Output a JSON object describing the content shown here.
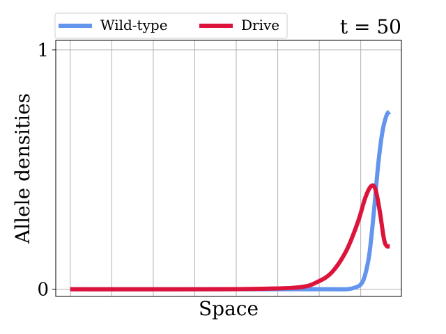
{
  "chart_data": {
    "type": "line",
    "title": "t = 50",
    "xlabel": "Space",
    "ylabel": "Allele densities",
    "yticks": [
      {
        "value": 0,
        "label": "0"
      },
      {
        "value": 1,
        "label": "1"
      }
    ],
    "xlim": [
      -1.0,
      22.8
    ],
    "ylim": [
      -0.03,
      1.04
    ],
    "grid": true,
    "legend_position": "top",
    "series": [
      {
        "name": "Wild-type",
        "color": "#6495ED",
        "x": [
          0,
          10,
          15,
          18,
          19,
          19.5,
          20,
          20.3,
          20.6,
          20.9,
          21.2,
          21.5,
          21.8,
          22
        ],
        "y": [
          0,
          0,
          0,
          0,
          0,
          0.005,
          0.02,
          0.06,
          0.15,
          0.32,
          0.52,
          0.66,
          0.73,
          0.74
        ]
      },
      {
        "name": "Drive",
        "color": "#DC143C",
        "x": [
          0,
          10,
          14,
          16,
          17,
          18,
          19,
          19.8,
          20.3,
          20.7,
          21,
          21.3,
          21.6,
          21.8,
          22
        ],
        "y": [
          0,
          0,
          0.003,
          0.01,
          0.03,
          0.07,
          0.16,
          0.28,
          0.38,
          0.43,
          0.42,
          0.33,
          0.21,
          0.18,
          0.18
        ]
      }
    ]
  }
}
